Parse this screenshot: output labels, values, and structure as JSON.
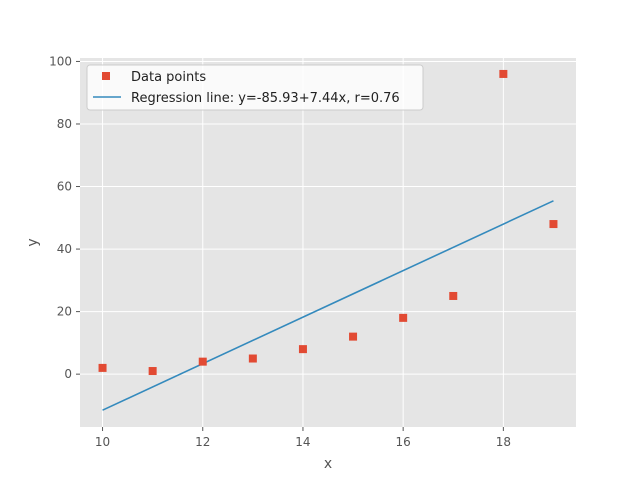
{
  "chart_data": {
    "type": "scatter",
    "title": "",
    "xlabel": "x",
    "ylabel": "y",
    "xlim": [
      9.55,
      19.45
    ],
    "ylim": [
      -16.9,
      101.1
    ],
    "xticks": [
      10,
      12,
      14,
      16,
      18
    ],
    "yticks": [
      0,
      20,
      40,
      60,
      80,
      100
    ],
    "grid": true,
    "legend_position": "top-left",
    "series": [
      {
        "name": "Data points",
        "kind": "scatter",
        "marker": "square",
        "color": "#E24A33",
        "x": [
          10,
          11,
          12,
          13,
          14,
          15,
          16,
          17,
          18,
          19
        ],
        "y": [
          2,
          1,
          4,
          5,
          8,
          12,
          18,
          25,
          96,
          48
        ]
      },
      {
        "name": "Regression line: y=-85.93+7.44x, r=0.76",
        "kind": "line",
        "color": "#348ABD",
        "intercept": -85.93,
        "slope": 7.44,
        "x_range": [
          10,
          19
        ]
      }
    ],
    "style": {
      "plot_background": "#E5E5E5",
      "grid_color": "#FFFFFF"
    }
  }
}
